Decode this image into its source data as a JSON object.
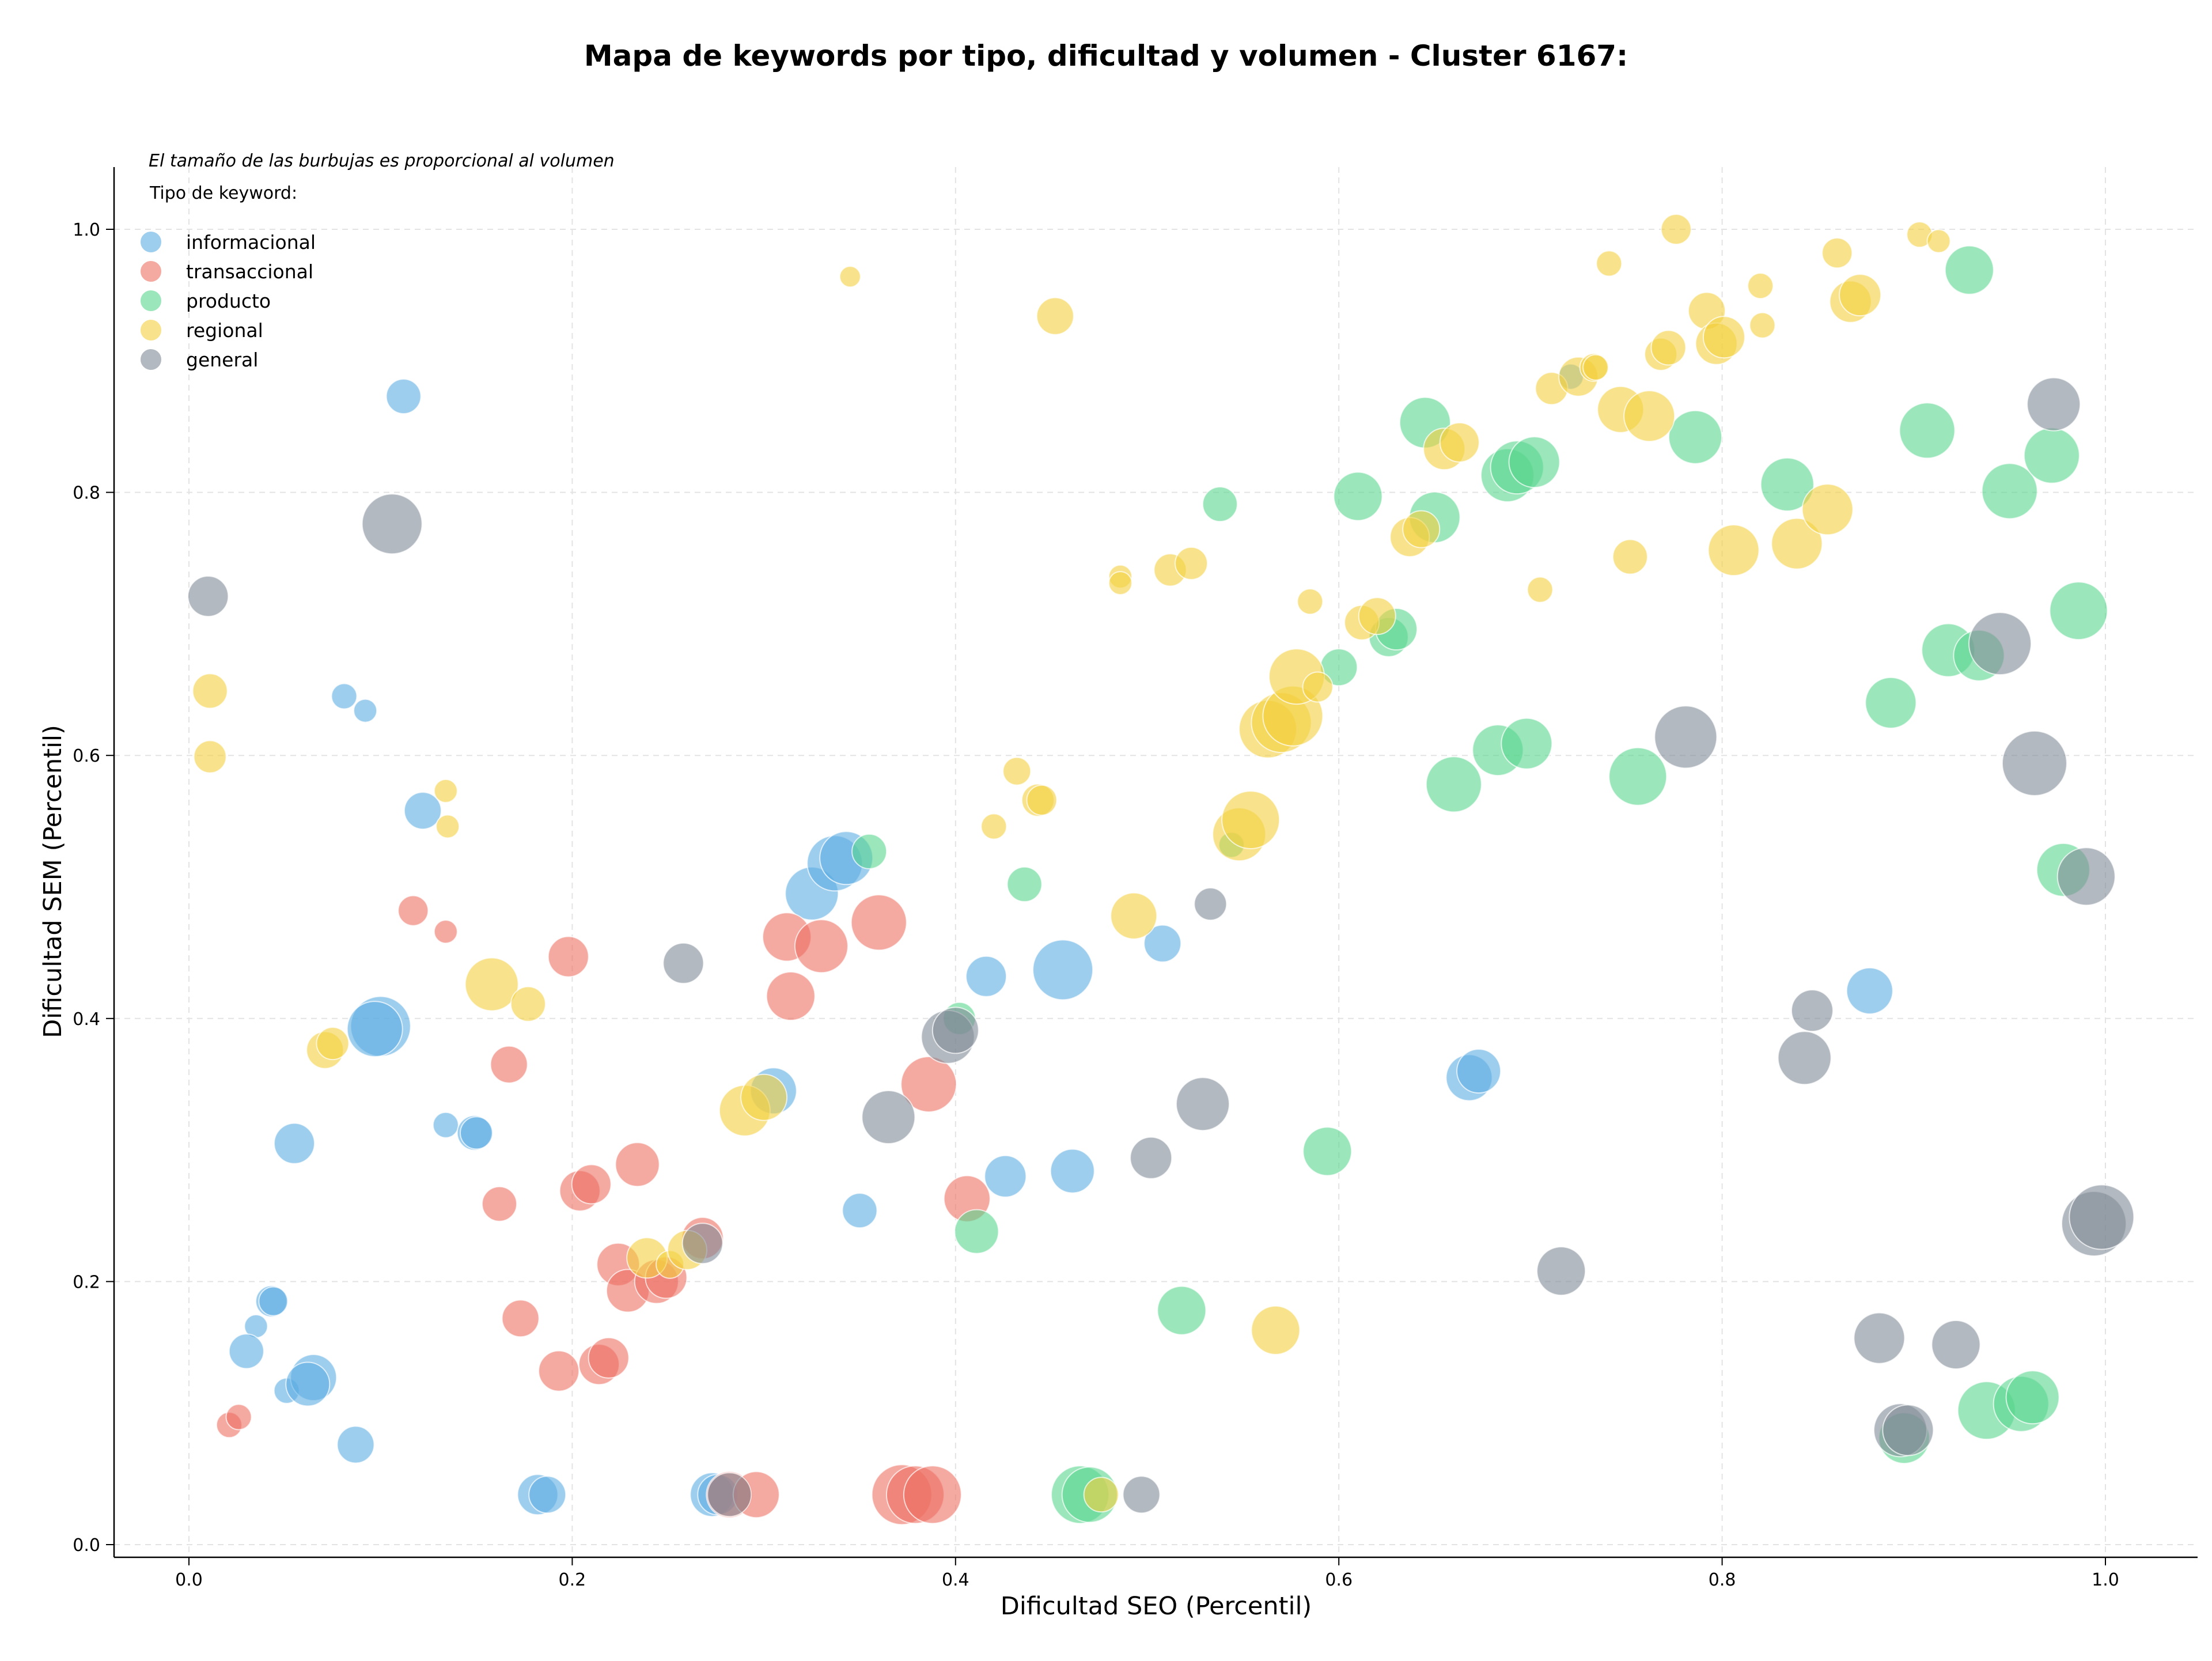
{
  "chart_data": {
    "type": "scatter",
    "title": "Mapa de keywords por tipo, dificultad y volumen - Cluster 6167:",
    "xlabel": "Dificultad SEO (Percentil)",
    "ylabel": "Dificultad SEM (Percentil)",
    "xlim": [
      -0.04,
      1.05
    ],
    "ylim": [
      -0.01,
      1.05
    ],
    "xticks": [
      "0.0",
      "0.2",
      "0.4",
      "0.6",
      "0.8",
      "1.0"
    ],
    "yticks": [
      "0.0",
      "0.2",
      "0.4",
      "0.6",
      "0.8",
      "1.0"
    ],
    "grid": true,
    "legend_position": "top-left",
    "note": "El tamaño de las burbujas es proporcional al volumen",
    "legend_title": "Tipo de keyword:",
    "point_format": "[x, y, size]",
    "series": [
      {
        "name": "informacional",
        "color": "#5DADE2",
        "points": [
          [
            0.112,
            0.873,
            30
          ],
          [
            0.081,
            0.645,
            22
          ],
          [
            0.092,
            0.634,
            20
          ],
          [
            0.122,
            0.558,
            32
          ],
          [
            0.1,
            0.394,
            52
          ],
          [
            0.097,
            0.392,
            48
          ],
          [
            0.055,
            0.305,
            35
          ],
          [
            0.134,
            0.319,
            22
          ],
          [
            0.149,
            0.313,
            30
          ],
          [
            0.15,
            0.313,
            28
          ],
          [
            0.043,
            0.185,
            27
          ],
          [
            0.044,
            0.185,
            25
          ],
          [
            0.035,
            0.166,
            20
          ],
          [
            0.03,
            0.147,
            30
          ],
          [
            0.051,
            0.117,
            22
          ],
          [
            0.065,
            0.127,
            40
          ],
          [
            0.062,
            0.122,
            38
          ],
          [
            0.087,
            0.076,
            32
          ],
          [
            0.182,
            0.038,
            35
          ],
          [
            0.187,
            0.038,
            32
          ],
          [
            0.273,
            0.038,
            38
          ],
          [
            0.276,
            0.038,
            35
          ],
          [
            0.305,
            0.345,
            40
          ],
          [
            0.325,
            0.495,
            46
          ],
          [
            0.337,
            0.518,
            48
          ],
          [
            0.343,
            0.522,
            46
          ],
          [
            0.35,
            0.254,
            30
          ],
          [
            0.416,
            0.432,
            35
          ],
          [
            0.426,
            0.28,
            36
          ],
          [
            0.456,
            0.437,
            52
          ],
          [
            0.461,
            0.284,
            38
          ],
          [
            0.508,
            0.457,
            32
          ],
          [
            0.668,
            0.355,
            40
          ],
          [
            0.673,
            0.36,
            38
          ],
          [
            0.721,
            0.888,
            22
          ],
          [
            0.877,
            0.421,
            40
          ]
        ]
      },
      {
        "name": "transaccional",
        "color": "#EC7063",
        "points": [
          [
            0.021,
            0.091,
            22
          ],
          [
            0.026,
            0.097,
            22
          ],
          [
            0.117,
            0.482,
            26
          ],
          [
            0.134,
            0.466,
            20
          ],
          [
            0.162,
            0.259,
            30
          ],
          [
            0.167,
            0.365,
            32
          ],
          [
            0.173,
            0.172,
            32
          ],
          [
            0.198,
            0.447,
            35
          ],
          [
            0.193,
            0.132,
            35
          ],
          [
            0.204,
            0.269,
            35
          ],
          [
            0.21,
            0.274,
            34
          ],
          [
            0.214,
            0.137,
            35
          ],
          [
            0.219,
            0.142,
            35
          ],
          [
            0.224,
            0.213,
            37
          ],
          [
            0.229,
            0.193,
            37
          ],
          [
            0.234,
            0.289,
            38
          ],
          [
            0.244,
            0.2,
            38
          ],
          [
            0.249,
            0.203,
            36
          ],
          [
            0.268,
            0.233,
            36
          ],
          [
            0.282,
            0.038,
            40
          ],
          [
            0.296,
            0.038,
            40
          ],
          [
            0.312,
            0.462,
            42
          ],
          [
            0.314,
            0.417,
            42
          ],
          [
            0.33,
            0.455,
            46
          ],
          [
            0.36,
            0.473,
            48
          ],
          [
            0.372,
            0.038,
            52
          ],
          [
            0.379,
            0.038,
            50
          ],
          [
            0.386,
            0.35,
            48
          ],
          [
            0.388,
            0.038,
            50
          ],
          [
            0.406,
            0.263,
            40
          ]
        ]
      },
      {
        "name": "producto",
        "color": "#58D68D",
        "points": [
          [
            0.355,
            0.527,
            30
          ],
          [
            0.402,
            0.4,
            28
          ],
          [
            0.411,
            0.238,
            38
          ],
          [
            0.436,
            0.502,
            30
          ],
          [
            0.465,
            0.038,
            50
          ],
          [
            0.47,
            0.038,
            48
          ],
          [
            0.518,
            0.178,
            42
          ],
          [
            0.538,
            0.791,
            30
          ],
          [
            0.544,
            0.532,
            22
          ],
          [
            0.594,
            0.299,
            42
          ],
          [
            0.6,
            0.667,
            32
          ],
          [
            0.61,
            0.797,
            42
          ],
          [
            0.626,
            0.69,
            34
          ],
          [
            0.63,
            0.696,
            36
          ],
          [
            0.645,
            0.853,
            44
          ],
          [
            0.65,
            0.781,
            44
          ],
          [
            0.66,
            0.578,
            48
          ],
          [
            0.683,
            0.604,
            44
          ],
          [
            0.688,
            0.813,
            46
          ],
          [
            0.693,
            0.819,
            46
          ],
          [
            0.698,
            0.609,
            44
          ],
          [
            0.702,
            0.823,
            44
          ],
          [
            0.756,
            0.584,
            50
          ],
          [
            0.786,
            0.842,
            46
          ],
          [
            0.834,
            0.806,
            46
          ],
          [
            0.888,
            0.64,
            44
          ],
          [
            0.895,
            0.081,
            44
          ],
          [
            0.907,
            0.847,
            48
          ],
          [
            0.918,
            0.68,
            46
          ],
          [
            0.929,
            0.969,
            42
          ],
          [
            0.934,
            0.676,
            44
          ],
          [
            0.938,
            0.102,
            50
          ],
          [
            0.95,
            0.801,
            48
          ],
          [
            0.956,
            0.107,
            48
          ],
          [
            0.962,
            0.112,
            46
          ],
          [
            0.972,
            0.828,
            48
          ],
          [
            0.978,
            0.513,
            46
          ],
          [
            0.986,
            0.71,
            50
          ]
        ]
      },
      {
        "name": "regional",
        "color": "#F4D03F",
        "points": [
          [
            0.011,
            0.649,
            30
          ],
          [
            0.011,
            0.599,
            28
          ],
          [
            0.071,
            0.376,
            32
          ],
          [
            0.075,
            0.381,
            28
          ],
          [
            0.134,
            0.573,
            20
          ],
          [
            0.135,
            0.546,
            20
          ],
          [
            0.158,
            0.426,
            46
          ],
          [
            0.177,
            0.411,
            30
          ],
          [
            0.239,
            0.218,
            35
          ],
          [
            0.251,
            0.213,
            24
          ],
          [
            0.26,
            0.224,
            34
          ],
          [
            0.29,
            0.33,
            44
          ],
          [
            0.3,
            0.34,
            40
          ],
          [
            0.345,
            0.964,
            18
          ],
          [
            0.432,
            0.588,
            24
          ],
          [
            0.42,
            0.546,
            22
          ],
          [
            0.443,
            0.566,
            28
          ],
          [
            0.445,
            0.566,
            26
          ],
          [
            0.452,
            0.934,
            32
          ],
          [
            0.476,
            0.038,
            30
          ],
          [
            0.486,
            0.736,
            20
          ],
          [
            0.486,
            0.731,
            20
          ],
          [
            0.493,
            0.478,
            40
          ],
          [
            0.512,
            0.741,
            28
          ],
          [
            0.523,
            0.746,
            28
          ],
          [
            0.548,
            0.54,
            46
          ],
          [
            0.554,
            0.551,
            50
          ],
          [
            0.563,
            0.62,
            50
          ],
          [
            0.567,
            0.163,
            42
          ],
          [
            0.57,
            0.625,
            52
          ],
          [
            0.576,
            0.63,
            52
          ],
          [
            0.578,
            0.66,
            48
          ],
          [
            0.585,
            0.717,
            22
          ],
          [
            0.589,
            0.652,
            26
          ],
          [
            0.612,
            0.701,
            30
          ],
          [
            0.62,
            0.706,
            32
          ],
          [
            0.637,
            0.766,
            34
          ],
          [
            0.643,
            0.772,
            32
          ],
          [
            0.655,
            0.833,
            36
          ],
          [
            0.663,
            0.838,
            34
          ],
          [
            0.705,
            0.726,
            22
          ],
          [
            0.711,
            0.879,
            28
          ],
          [
            0.725,
            0.888,
            34
          ],
          [
            0.733,
            0.895,
            24
          ],
          [
            0.734,
            0.895,
            22
          ],
          [
            0.741,
            0.974,
            22
          ],
          [
            0.747,
            0.863,
            40
          ],
          [
            0.752,
            0.751,
            30
          ],
          [
            0.762,
            0.858,
            44
          ],
          [
            0.768,
            0.905,
            28
          ],
          [
            0.772,
            0.91,
            30
          ],
          [
            0.776,
            1.0,
            26
          ],
          [
            0.792,
            0.938,
            32
          ],
          [
            0.797,
            0.913,
            36
          ],
          [
            0.801,
            0.918,
            36
          ],
          [
            0.806,
            0.756,
            44
          ],
          [
            0.82,
            0.957,
            22
          ],
          [
            0.821,
            0.927,
            22
          ],
          [
            0.839,
            0.761,
            44
          ],
          [
            0.855,
            0.787,
            44
          ],
          [
            0.86,
            0.982,
            26
          ],
          [
            0.867,
            0.945,
            36
          ],
          [
            0.872,
            0.95,
            36
          ],
          [
            0.903,
            0.996,
            22
          ],
          [
            0.913,
            0.991,
            20
          ]
        ]
      },
      {
        "name": "general",
        "color": "#808B96",
        "points": [
          [
            0.01,
            0.721,
            35
          ],
          [
            0.106,
            0.776,
            52
          ],
          [
            0.258,
            0.442,
            35
          ],
          [
            0.268,
            0.229,
            35
          ],
          [
            0.282,
            0.038,
            38
          ],
          [
            0.365,
            0.325,
            46
          ],
          [
            0.396,
            0.386,
            46
          ],
          [
            0.4,
            0.391,
            40
          ],
          [
            0.497,
            0.038,
            32
          ],
          [
            0.502,
            0.294,
            36
          ],
          [
            0.529,
            0.335,
            46
          ],
          [
            0.533,
            0.487,
            28
          ],
          [
            0.716,
            0.208,
            42
          ],
          [
            0.781,
            0.614,
            54
          ],
          [
            0.843,
            0.37,
            46
          ],
          [
            0.847,
            0.406,
            36
          ],
          [
            0.882,
            0.157,
            44
          ],
          [
            0.893,
            0.087,
            46
          ],
          [
            0.897,
            0.087,
            44
          ],
          [
            0.922,
            0.152,
            42
          ],
          [
            0.945,
            0.685,
            54
          ],
          [
            0.963,
            0.594,
            56
          ],
          [
            0.973,
            0.867,
            46
          ],
          [
            0.99,
            0.508,
            50
          ],
          [
            0.994,
            0.244,
            56
          ],
          [
            0.998,
            0.249,
            56
          ]
        ]
      }
    ]
  }
}
